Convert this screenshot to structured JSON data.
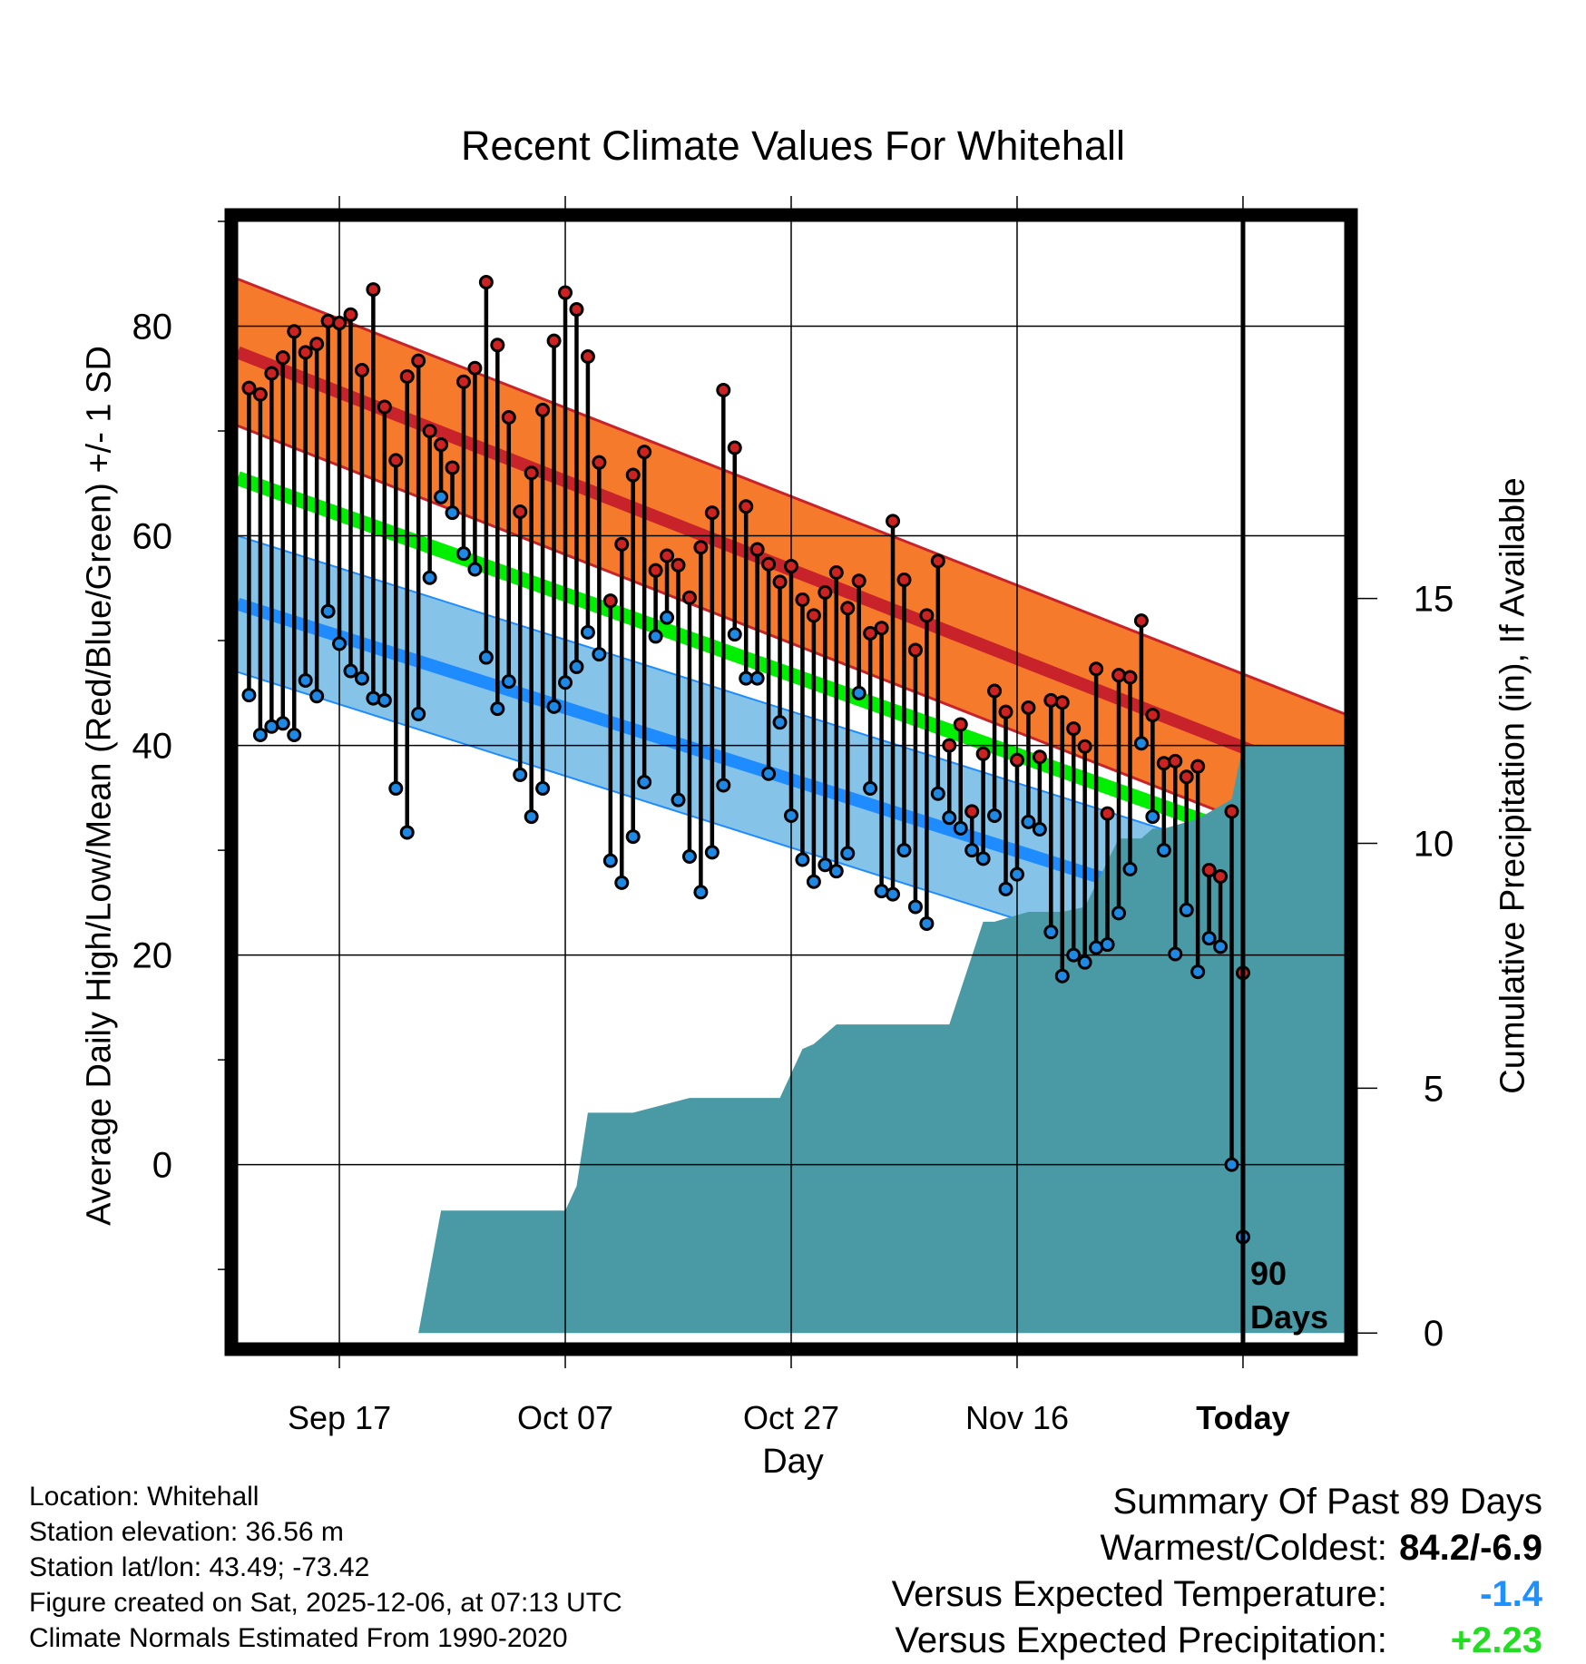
{
  "colors": {
    "high_band": "#f57a2c",
    "high_line": "#c8232a",
    "low_band": "#86c3e8",
    "low_line": "#1e8cff",
    "mean_line": "#00ee00",
    "precip_fill": "#4a9aa6",
    "high_marker": "#cc2222",
    "low_marker": "#1e88e5",
    "temp_departure": "#1e90ff",
    "precip_departure": "#22dd22"
  },
  "chart_data": {
    "type": "line",
    "title": "Recent Climate Values For Whitehall",
    "xlabel": "Day",
    "ylabel": "Average Daily High/Low/Mean (Red/Blue/Green) +/- 1 SD",
    "y2label": "Cumulative Precipitation (in), If Available",
    "xlim": [
      -89,
      9
    ],
    "ylim": [
      -17,
      90
    ],
    "y2lim": [
      -0.2,
      22.7
    ],
    "xticks": [
      -80,
      -60,
      -40,
      -20,
      0
    ],
    "xtick_labels": [
      "Sep 17",
      "Oct 07",
      "Oct 27",
      "Nov 16",
      "Today"
    ],
    "yticks": [
      0,
      20,
      40,
      60,
      80
    ],
    "y2ticks": [
      0,
      5,
      10,
      15
    ],
    "today_label": "90\nDays",
    "normals": {
      "x": [
        -89,
        9
      ],
      "mean_high": [
        77.5,
        36.0
      ],
      "high_sd": 7.0,
      "mean_low": [
        53.5,
        20.0
      ],
      "low_sd": 6.5,
      "mean_mean": [
        65.5,
        28.0
      ]
    },
    "daily_high": [
      74.1,
      73.5,
      75.5,
      77.0,
      79.5,
      77.5,
      78.3,
      80.5,
      80.3,
      81.1,
      75.8,
      83.5,
      72.3,
      67.2,
      75.2,
      76.7,
      70.0,
      68.7,
      66.5,
      74.7,
      76.0,
      84.2,
      78.2,
      71.3,
      62.3,
      66.0,
      72.0,
      78.6,
      83.2,
      81.6,
      77.1,
      67.0,
      53.8,
      59.2,
      65.8,
      68.0,
      56.7,
      58.1,
      57.2,
      54.1,
      58.9,
      62.2,
      73.9,
      68.4,
      62.8,
      58.7,
      57.3,
      55.6,
      57.1,
      53.9,
      52.4,
      54.6,
      56.5,
      53.1,
      55.7,
      50.7,
      51.2,
      61.4,
      55.8,
      49.1,
      52.4,
      57.6,
      40.0,
      42.0,
      33.7,
      39.2,
      45.2,
      43.2,
      38.6,
      43.6,
      38.9,
      44.3,
      44.1,
      41.6,
      39.9,
      47.3,
      33.5,
      46.7,
      46.5,
      51.9,
      42.9,
      38.3,
      38.5,
      37.0,
      38.0,
      28.1,
      27.5,
      33.7,
      18.3
    ],
    "daily_low": [
      44.8,
      41.0,
      41.8,
      42.1,
      41.0,
      46.2,
      44.7,
      52.8,
      49.7,
      47.1,
      46.4,
      44.5,
      44.3,
      35.9,
      31.7,
      43.0,
      56.0,
      63.7,
      62.2,
      58.3,
      56.8,
      48.4,
      43.5,
      46.1,
      37.2,
      33.2,
      35.9,
      43.7,
      46.0,
      47.5,
      50.8,
      48.7,
      29.0,
      26.9,
      31.3,
      36.5,
      50.4,
      52.2,
      34.8,
      29.4,
      26.0,
      29.8,
      36.2,
      50.6,
      46.4,
      46.4,
      37.3,
      42.2,
      33.3,
      29.1,
      27.0,
      28.6,
      28.0,
      29.7,
      45.0,
      35.9,
      26.1,
      25.8,
      30.0,
      24.6,
      23.0,
      35.4,
      33.1,
      32.1,
      30.0,
      29.2,
      33.3,
      26.3,
      27.7,
      32.7,
      32.0,
      22.2,
      18.0,
      20.0,
      19.3,
      20.7,
      21.0,
      24.0,
      28.2,
      40.2,
      33.2,
      30.0,
      20.1,
      24.3,
      18.4,
      21.6,
      20.8,
      0.0,
      -6.9
    ],
    "cumulative_precip": {
      "x": [
        -89,
        -73,
        -71,
        -60,
        -59,
        -58,
        -54,
        -49,
        -47,
        -41,
        -39,
        -38,
        -36,
        -34,
        -26,
        -25,
        -23,
        -22,
        -19,
        -16,
        -14,
        -11,
        -9,
        -8,
        -7,
        -4,
        -1,
        0,
        9
      ],
      "values": [
        0,
        0,
        2.5,
        2.5,
        3.0,
        4.5,
        4.5,
        4.8,
        4.8,
        4.8,
        5.8,
        5.9,
        6.3,
        6.3,
        6.3,
        7.0,
        8.4,
        8.4,
        8.6,
        8.6,
        8.7,
        10.1,
        10.1,
        10.3,
        10.3,
        10.5,
        10.9,
        12.0,
        12.0
      ]
    }
  },
  "meta": {
    "location": "Location: Whitehall",
    "elevation": "Station elevation: 36.56 m",
    "latlon": "Station lat/lon: 43.49; -73.42",
    "created": "Figure created on Sat, 2025-12-06, at 07:13 UTC",
    "normals": "Climate Normals Estimated From 1990-2020"
  },
  "summary": {
    "heading": "Summary Of Past 89 Days",
    "warmest_coldest_label": "Warmest/Coldest:",
    "warmest_coldest_value": "84.2/-6.9",
    "temp_label": "Versus Expected Temperature:",
    "temp_value": "-1.4",
    "precip_label": "Versus Expected Precipitation:",
    "precip_value": "+2.23"
  }
}
